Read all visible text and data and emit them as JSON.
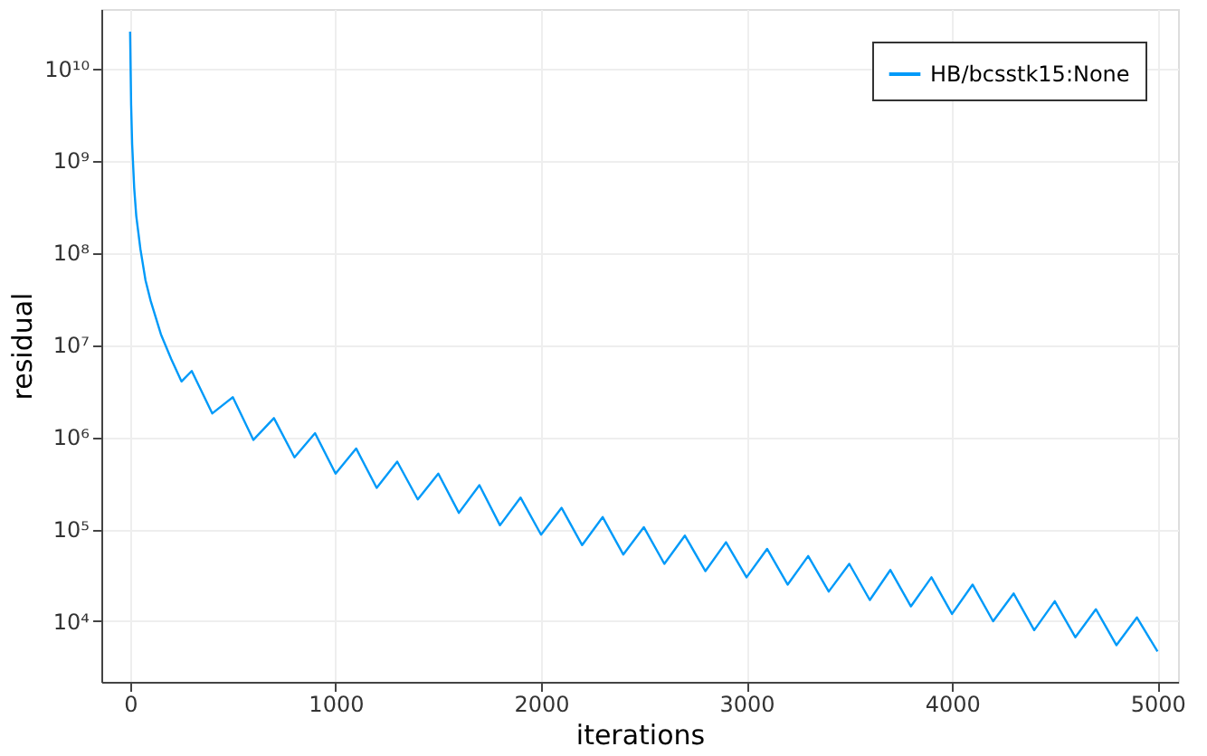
{
  "chart_data": {
    "type": "line",
    "xlabel": "iterations",
    "ylabel": "residual",
    "log": "y",
    "grid": true,
    "legend": "top right",
    "marker": "none",
    "line_style": "solid",
    "xlim": [
      -140,
      5100
    ],
    "xticks": [
      0,
      1000,
      2000,
      3000,
      4000,
      5000
    ],
    "ylim": [
      2200,
      44000000000
    ],
    "yticks": [
      {
        "value": 10000,
        "label": "10⁴"
      },
      {
        "value": 100000,
        "label": "10⁵"
      },
      {
        "value": 1000000,
        "label": "10⁶"
      },
      {
        "value": 10000000,
        "label": "10⁷"
      },
      {
        "value": 100000000,
        "label": "10⁸"
      },
      {
        "value": 1000000000,
        "label": "10⁹"
      },
      {
        "value": 10000000000,
        "label": "10¹⁰"
      }
    ],
    "x": [
      0,
      5,
      10,
      20,
      30,
      50,
      75,
      100,
      150,
      200,
      250,
      300,
      400,
      500,
      600,
      700,
      800,
      900,
      1000,
      1100,
      1200,
      1300,
      1400,
      1500,
      1600,
      1700,
      1800,
      1900,
      2000,
      2100,
      2200,
      2300,
      2400,
      2500,
      2600,
      2700,
      2800,
      2900,
      3000,
      3100,
      3200,
      3300,
      3400,
      3500,
      3600,
      3700,
      3800,
      3900,
      4000,
      4100,
      4200,
      4300,
      4400,
      4500,
      4600,
      4700,
      4800,
      4900,
      5000
    ],
    "series": [
      {
        "name": "HB/bcsstk15:None",
        "color": "#009af9",
        "values": [
          25000000000,
          4000000000,
          1500000000,
          500000000,
          250000000,
          110000000,
          50000000,
          30000000,
          13000000,
          7000000,
          4000000,
          5200000,
          1800000,
          2700000,
          930000,
          1600000,
          600000,
          1100000,
          400000,
          750000,
          280000,
          540000,
          210000,
          400000,
          150000,
          300000,
          110000,
          220000,
          87000,
          170000,
          67000,
          135000,
          53000,
          105000,
          42000,
          85000,
          35000,
          72000,
          30000,
          61000,
          25000,
          51000,
          21000,
          42000,
          17000,
          36000,
          14500,
          30000,
          12000,
          25000,
          10000,
          20000,
          8000,
          16500,
          6700,
          13500,
          5500,
          11000,
          4700
        ]
      }
    ]
  }
}
